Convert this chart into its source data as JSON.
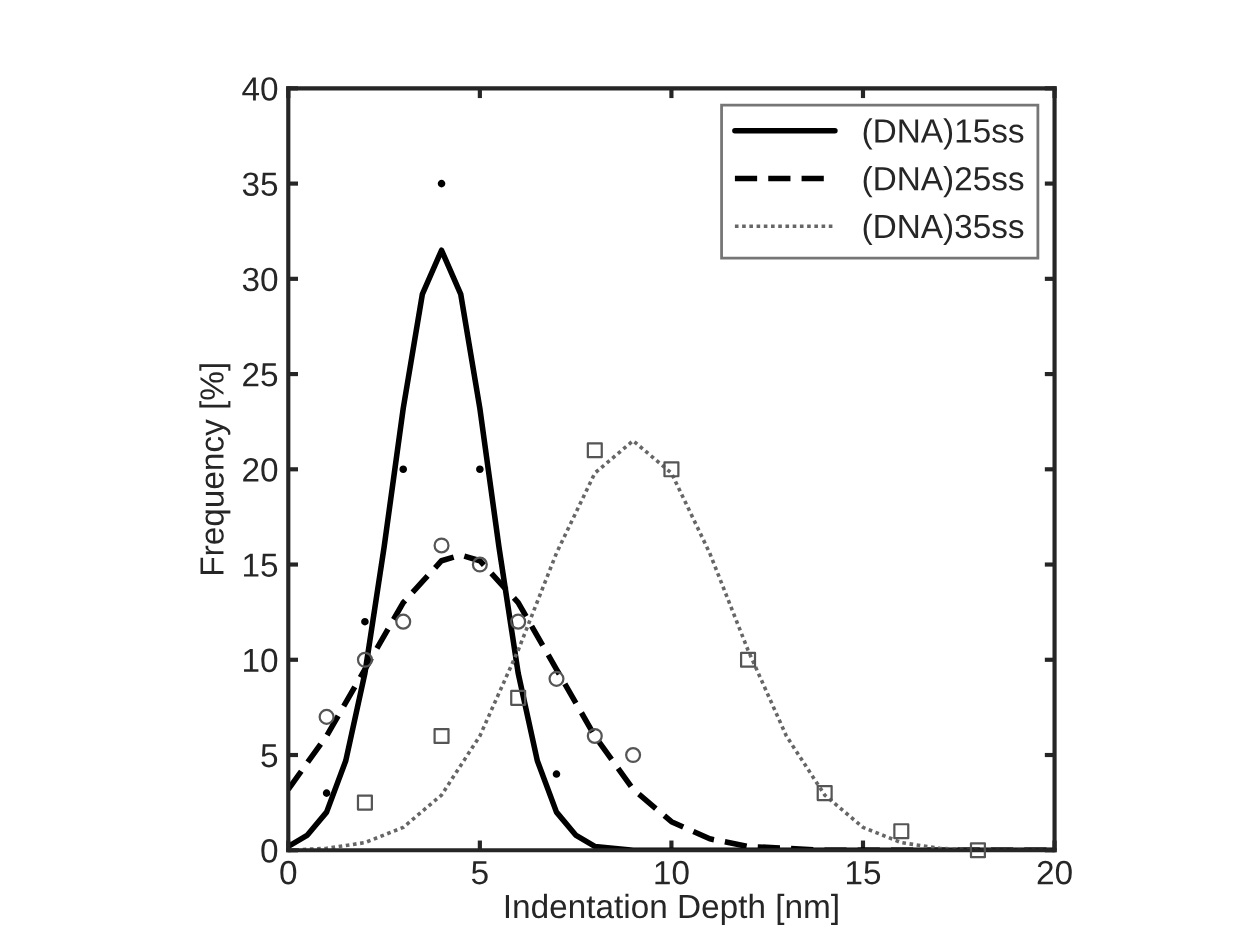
{
  "chart_data": {
    "type": "line",
    "xlabel": "Indentation Depth [nm]",
    "ylabel": "Frequency [%]",
    "xlim": [
      0,
      20
    ],
    "ylim": [
      0,
      40
    ],
    "xticks": [
      0,
      5,
      10,
      15,
      20
    ],
    "yticks": [
      0,
      5,
      10,
      15,
      20,
      25,
      30,
      35,
      40
    ],
    "grid": false,
    "legend": "top right",
    "series": [
      {
        "name": "(DNA)15ss",
        "line_style": "solid",
        "color": "#000000",
        "x": [
          0,
          0.5,
          1,
          1.5,
          2,
          2.5,
          3,
          3.5,
          4,
          4.5,
          5,
          5.5,
          6,
          6.5,
          7,
          7.5,
          8,
          9,
          10,
          20
        ],
        "values": [
          0.2,
          0.8,
          2.0,
          4.7,
          9.3,
          15.9,
          23.2,
          29.2,
          31.5,
          29.2,
          23.2,
          15.9,
          9.3,
          4.7,
          2.0,
          0.8,
          0.2,
          0,
          0,
          0
        ]
      },
      {
        "name": "(DNA)25ss",
        "line_style": "dashed",
        "color": "#000000",
        "x": [
          0,
          1,
          2,
          3,
          4,
          4.5,
          5,
          6,
          7,
          8,
          9,
          10,
          11,
          12,
          13,
          14,
          20
        ],
        "values": [
          3.2,
          6.0,
          9.5,
          13.0,
          15.2,
          15.5,
          15.2,
          13.0,
          9.5,
          6.0,
          3.2,
          1.5,
          0.6,
          0.2,
          0.1,
          0,
          0
        ]
      },
      {
        "name": "(DNA)35ss",
        "line_style": "dotted",
        "color": "#666666",
        "x": [
          0,
          1,
          2,
          3,
          4,
          5,
          6,
          7,
          8,
          9,
          10,
          11,
          12,
          13,
          14,
          15,
          16,
          17,
          18,
          19,
          20
        ],
        "values": [
          0,
          0.1,
          0.4,
          1.2,
          2.9,
          6.0,
          10.5,
          15.6,
          19.8,
          21.5,
          19.8,
          15.6,
          10.5,
          6.0,
          2.9,
          1.2,
          0.4,
          0.1,
          0,
          0,
          0
        ]
      },
      {
        "type": "scatter",
        "marker": "dot",
        "color": "#000000",
        "x": [
          1,
          2,
          3,
          4,
          5,
          7
        ],
        "values": [
          3,
          12,
          20,
          35,
          20,
          4
        ]
      },
      {
        "type": "scatter",
        "marker": "circle",
        "color": "#555555",
        "x": [
          1,
          2,
          3,
          4,
          5,
          6,
          7,
          8,
          9
        ],
        "values": [
          7,
          10,
          12,
          16,
          15,
          12,
          9,
          6,
          5
        ]
      },
      {
        "type": "scatter",
        "marker": "square",
        "color": "#555555",
        "x": [
          2,
          4,
          6,
          8,
          10,
          12,
          14,
          16,
          18
        ],
        "values": [
          2.5,
          6,
          8,
          21,
          20,
          10,
          3,
          1,
          0
        ]
      }
    ]
  }
}
